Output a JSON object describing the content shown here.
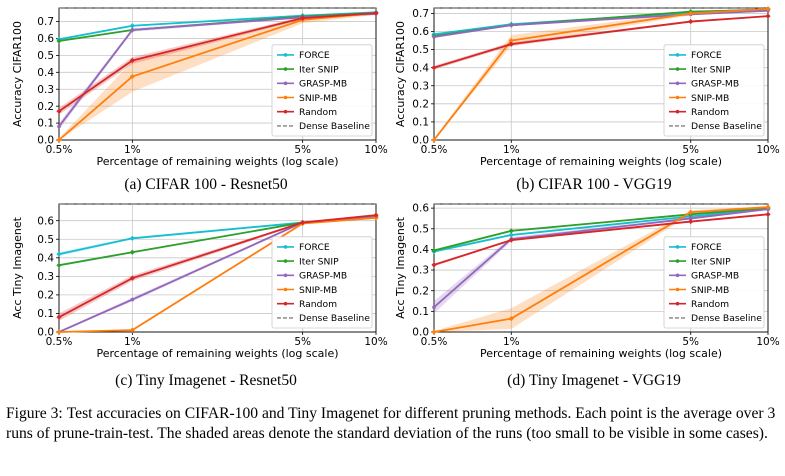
{
  "chart_data": [
    {
      "id": "a",
      "type": "line",
      "ylabel": "Accuracy CIFAR100",
      "xlabel": "Percentage of remaining weights (log scale)",
      "x": [
        0.5,
        1,
        5,
        10
      ],
      "xtick_labels": [
        "0.5%",
        "1%",
        "5%",
        "10%"
      ],
      "xscale": "log",
      "xlim": [
        0.5,
        10
      ],
      "ylim": [
        0,
        0.78
      ],
      "yticks": [
        "0.0",
        "0.1",
        "0.2",
        "0.3",
        "0.4",
        "0.5",
        "0.6",
        "0.7"
      ],
      "grid": true,
      "legend_position": "lower-right",
      "baseline": 0.78,
      "series": [
        {
          "name": "FORCE",
          "color": "#17becf",
          "marker": "diamond",
          "values": [
            0.595,
            0.675,
            0.735,
            0.755
          ],
          "std": [
            0.005,
            0.005,
            0.004,
            0.004
          ]
        },
        {
          "name": "Iter SNIP",
          "color": "#2ca02c",
          "marker": "diamond",
          "values": [
            0.585,
            0.65,
            0.73,
            0.75
          ],
          "std": [
            0.005,
            0.005,
            0.004,
            0.004
          ]
        },
        {
          "name": "GRASP-MB",
          "color": "#9467bd",
          "marker": "dot",
          "values": [
            0.08,
            0.65,
            0.725,
            0.745
          ],
          "std": [
            0.02,
            0.01,
            0.005,
            0.004
          ]
        },
        {
          "name": "SNIP-MB",
          "color": "#ff7f0e",
          "marker": "diamond",
          "values": [
            0.0,
            0.375,
            0.71,
            0.75
          ],
          "std": [
            0.01,
            0.09,
            0.02,
            0.01
          ]
        },
        {
          "name": "Random",
          "color": "#d62728",
          "marker": "diamond",
          "values": [
            0.17,
            0.47,
            0.72,
            0.75
          ],
          "std": [
            0.02,
            0.02,
            0.008,
            0.006
          ]
        }
      ],
      "baseline_label": "Dense Baseline",
      "caption": "(a) CIFAR 100 - Resnet50"
    },
    {
      "id": "b",
      "type": "line",
      "ylabel": "Accuracy CIFAR100",
      "xlabel": "Percentage of remaining weights (log scale)",
      "x": [
        0.5,
        1,
        5,
        10
      ],
      "xtick_labels": [
        "0.5%",
        "1%",
        "5%",
        "10%"
      ],
      "xscale": "log",
      "xlim": [
        0.5,
        10
      ],
      "ylim": [
        0,
        0.73
      ],
      "yticks": [
        "0.0",
        "0.1",
        "0.2",
        "0.3",
        "0.4",
        "0.5",
        "0.6",
        "0.7"
      ],
      "grid": true,
      "legend_position": "lower-right",
      "baseline": 0.73,
      "series": [
        {
          "name": "FORCE",
          "color": "#17becf",
          "marker": "diamond",
          "values": [
            0.585,
            0.64,
            0.705,
            0.725
          ],
          "std": [
            0.005,
            0.005,
            0.004,
            0.004
          ]
        },
        {
          "name": "Iter SNIP",
          "color": "#2ca02c",
          "marker": "diamond",
          "values": [
            0.575,
            0.635,
            0.71,
            0.72
          ],
          "std": [
            0.005,
            0.005,
            0.004,
            0.004
          ]
        },
        {
          "name": "GRASP-MB",
          "color": "#9467bd",
          "marker": "dot",
          "values": [
            0.57,
            0.635,
            0.695,
            0.715
          ],
          "std": [
            0.005,
            0.005,
            0.004,
            0.004
          ]
        },
        {
          "name": "SNIP-MB",
          "color": "#ff7f0e",
          "marker": "diamond",
          "values": [
            0.0,
            0.55,
            0.7,
            0.725
          ],
          "std": [
            0.01,
            0.03,
            0.01,
            0.005
          ]
        },
        {
          "name": "Random",
          "color": "#d62728",
          "marker": "diamond",
          "values": [
            0.4,
            0.53,
            0.655,
            0.685
          ],
          "std": [
            0.01,
            0.01,
            0.005,
            0.005
          ]
        }
      ],
      "baseline_label": "Dense Baseline",
      "caption": "(b) CIFAR 100 - VGG19"
    },
    {
      "id": "c",
      "type": "line",
      "ylabel": "Acc Tiny Imagenet",
      "xlabel": "Percentage of remaining weights (log scale)",
      "x": [
        0.5,
        1,
        5,
        10
      ],
      "xtick_labels": [
        "0.5%",
        "1%",
        "5%",
        "10%"
      ],
      "xscale": "log",
      "xlim": [
        0.5,
        10
      ],
      "ylim": [
        0,
        0.69
      ],
      "yticks": [
        "0.0",
        "0.1",
        "0.2",
        "0.3",
        "0.4",
        "0.5",
        "0.6"
      ],
      "grid": true,
      "legend_position": "lower-right",
      "baseline": 0.69,
      "series": [
        {
          "name": "FORCE",
          "color": "#17becf",
          "marker": "diamond",
          "values": [
            0.42,
            0.505,
            0.59,
            0.615
          ],
          "std": [
            0.01,
            0.006,
            0.004,
            0.004
          ]
        },
        {
          "name": "Iter SNIP",
          "color": "#2ca02c",
          "marker": "diamond",
          "values": [
            0.36,
            0.43,
            0.59,
            0.62
          ],
          "std": [
            0.006,
            0.005,
            0.004,
            0.004
          ]
        },
        {
          "name": "GRASP-MB",
          "color": "#9467bd",
          "marker": "dot",
          "values": [
            0.0,
            0.175,
            0.59,
            0.62
          ],
          "std": [
            0.005,
            0.01,
            0.005,
            0.004
          ]
        },
        {
          "name": "SNIP-MB",
          "color": "#ff7f0e",
          "marker": "diamond",
          "values": [
            0.0,
            0.01,
            0.585,
            0.615
          ],
          "std": [
            0.004,
            0.006,
            0.005,
            0.004
          ]
        },
        {
          "name": "Random",
          "color": "#d62728",
          "marker": "diamond",
          "values": [
            0.08,
            0.29,
            0.59,
            0.63
          ],
          "std": [
            0.02,
            0.015,
            0.005,
            0.005
          ]
        }
      ],
      "baseline_label": "Dense Baseline",
      "caption": "(c) Tiny Imagenet - Resnet50"
    },
    {
      "id": "d",
      "type": "line",
      "ylabel": "Acc Tiny Imagenet",
      "xlabel": "Percentage of remaining weights (log scale)",
      "x": [
        0.5,
        1,
        5,
        10
      ],
      "xtick_labels": [
        "0.5%",
        "1%",
        "5%",
        "10%"
      ],
      "xscale": "log",
      "xlim": [
        0.5,
        10
      ],
      "ylim": [
        0,
        0.62
      ],
      "yticks": [
        "0.0",
        "0.1",
        "0.2",
        "0.3",
        "0.4",
        "0.5",
        "0.6"
      ],
      "grid": true,
      "legend_position": "lower-right",
      "baseline": 0.62,
      "series": [
        {
          "name": "FORCE",
          "color": "#17becf",
          "marker": "diamond",
          "values": [
            0.39,
            0.47,
            0.56,
            0.595
          ],
          "std": [
            0.006,
            0.005,
            0.004,
            0.004
          ]
        },
        {
          "name": "Iter SNIP",
          "color": "#2ca02c",
          "marker": "diamond",
          "values": [
            0.395,
            0.49,
            0.57,
            0.6
          ],
          "std": [
            0.006,
            0.005,
            0.004,
            0.004
          ]
        },
        {
          "name": "GRASP-MB",
          "color": "#9467bd",
          "marker": "dot",
          "values": [
            0.12,
            0.45,
            0.55,
            0.595
          ],
          "std": [
            0.03,
            0.01,
            0.005,
            0.004
          ]
        },
        {
          "name": "SNIP-MB",
          "color": "#ff7f0e",
          "marker": "diamond",
          "values": [
            0.0,
            0.065,
            0.58,
            0.605
          ],
          "std": [
            0.005,
            0.05,
            0.01,
            0.005
          ]
        },
        {
          "name": "Random",
          "color": "#d62728",
          "marker": "diamond",
          "values": [
            0.325,
            0.445,
            0.535,
            0.57
          ],
          "std": [
            0.006,
            0.005,
            0.004,
            0.004
          ]
        }
      ],
      "baseline_label": "Dense Baseline",
      "caption": "(d) Tiny Imagenet - VGG19"
    }
  ],
  "figure_caption": {
    "label": "Figure 3:",
    "text": "Test accuracies on CIFAR-100 and Tiny Imagenet for different pruning methods. Each point is the average over 3 runs of prune-train-test. The shaded areas denote the standard deviation of the runs (too small to be visible in some cases)."
  }
}
